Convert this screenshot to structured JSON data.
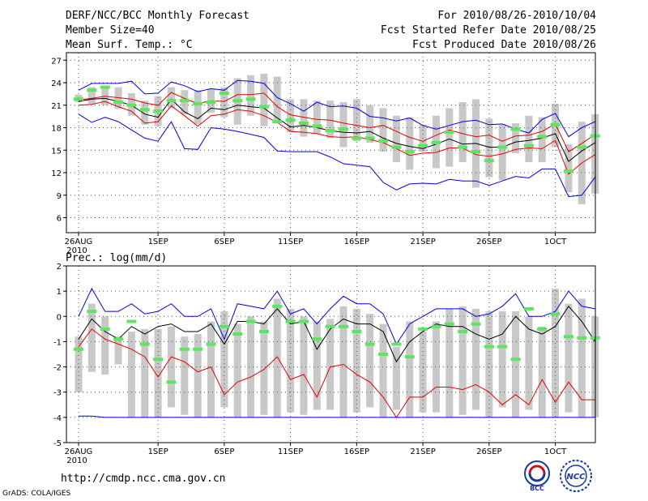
{
  "header": {
    "title": "DERF/NCC/BCC Monthly Forecast",
    "member_size": "Member Size=40",
    "variable": "Mean Surf. Temp.: °C",
    "for_range": "For 2010/08/26-2010/10/04",
    "fcst_started": "Fcst Started Refer Date 2010/08/25",
    "fcst_produced": "Fcst Produced Date 2010/08/26"
  },
  "footer": {
    "url": "http://cmdp.ncc.cma.gov.cn",
    "credit": "GrADS: COLA/IGES"
  },
  "logos": {
    "bcc_label": "BCC",
    "ncc_label": "NCC"
  },
  "colors": {
    "box": "#c8c8c8",
    "median": "#5ce65c",
    "max_min": "#0000e6",
    "mean": "#000000",
    "spread": "#e60000"
  },
  "chart_data": [
    {
      "type": "line",
      "title": "Mean Surf. Temp.: °C",
      "xlabel": "",
      "ylabel": "",
      "ylim": [
        4,
        28
      ],
      "yticks": [
        6,
        9,
        12,
        15,
        18,
        21,
        24,
        27
      ],
      "x_ticks": [
        {
          "day": 0,
          "label": "26AUG",
          "sub": "2010"
        },
        {
          "day": 6,
          "label": "1SEP"
        },
        {
          "day": 11,
          "label": "6SEP"
        },
        {
          "day": 16,
          "label": "11SEP"
        },
        {
          "day": 21,
          "label": "16SEP"
        },
        {
          "day": 26,
          "label": "21SEP"
        },
        {
          "day": 31,
          "label": "26SEP"
        },
        {
          "day": 36,
          "label": "1OCT"
        }
      ],
      "days": 40,
      "box_low": [
        21.4,
        21.2,
        21.0,
        20.5,
        19.6,
        18.4,
        18.2,
        20.6,
        19.8,
        18.5,
        20.0,
        19.4,
        18.4,
        19.6,
        18.2,
        18.6,
        17.4,
        16.8,
        17.2,
        16.6,
        15.4,
        16.2,
        16.0,
        14.8,
        13.4,
        12.4,
        14.8,
        12.6,
        12.8,
        13.4,
        10.0,
        11.4,
        11.0,
        14.6,
        13.4,
        13.4,
        15.4,
        9.4,
        7.8,
        9.2
      ],
      "box_high": [
        22.4,
        23.4,
        23.6,
        23.4,
        22.6,
        21.6,
        22.2,
        23.4,
        23.0,
        23.0,
        23.2,
        23.4,
        24.6,
        25.0,
        25.2,
        24.8,
        21.8,
        21.8,
        21.6,
        21.6,
        21.4,
        21.8,
        21.0,
        20.6,
        19.6,
        19.4,
        18.4,
        19.6,
        20.6,
        21.4,
        21.8,
        19.2,
        18.4,
        18.6,
        19.6,
        19.4,
        21.2,
        15.8,
        18.8,
        19.8
      ],
      "median": [
        21.8,
        23.0,
        23.4,
        21.4,
        21.0,
        20.4,
        20.2,
        21.6,
        21.6,
        21.2,
        21.4,
        22.6,
        21.6,
        21.8,
        20.8,
        18.8,
        19.0,
        18.6,
        18.2,
        17.6,
        17.8,
        16.6,
        16.6,
        16.2,
        15.4,
        14.8,
        15.6,
        16.0,
        17.4,
        15.4,
        14.8,
        13.6,
        15.4,
        17.8,
        15.6,
        16.8,
        18.4,
        12.2,
        15.4,
        16.9
      ],
      "series": [
        {
          "name": "max",
          "values": [
            23.0,
            23.9,
            23.9,
            23.9,
            24.2,
            22.5,
            22.6,
            24.1,
            23.6,
            22.8,
            23.2,
            23.0,
            24.3,
            24.2,
            23.9,
            22.0,
            21.2,
            20.2,
            21.4,
            20.8,
            20.9,
            20.6,
            19.5,
            19.3,
            18.9,
            19.3,
            18.3,
            17.8,
            18.3,
            18.8,
            19.0,
            18.4,
            18.5,
            17.8,
            17.3,
            19.1,
            19.9,
            16.8,
            18.0,
            18.8
          ]
        },
        {
          "name": "p_high",
          "values": [
            21.7,
            21.9,
            22.2,
            22.0,
            21.8,
            21.3,
            21.0,
            22.7,
            21.9,
            21.2,
            21.6,
            21.5,
            22.4,
            22.4,
            22.6,
            20.8,
            19.7,
            19.4,
            19.1,
            19.0,
            18.6,
            18.3,
            18.0,
            18.3,
            17.5,
            16.7,
            16.2,
            17.0,
            17.7,
            17.2,
            16.8,
            17.0,
            16.2,
            16.9,
            17.0,
            17.5,
            18.5,
            14.8,
            15.9,
            17.1
          ]
        },
        {
          "name": "mean",
          "values": [
            21.5,
            21.8,
            21.9,
            21.5,
            21.0,
            19.8,
            19.4,
            21.8,
            20.1,
            19.2,
            20.6,
            20.4,
            21.0,
            20.8,
            20.6,
            19.3,
            18.1,
            18.3,
            18.0,
            17.6,
            17.4,
            17.3,
            17.5,
            16.6,
            15.9,
            15.5,
            15.2,
            15.8,
            16.5,
            15.8,
            15.9,
            15.4,
            15.4,
            16.1,
            16.3,
            16.6,
            17.2,
            13.5,
            14.9,
            16.0
          ]
        },
        {
          "name": "p_low",
          "values": [
            21.0,
            21.1,
            21.5,
            20.8,
            20.2,
            18.6,
            18.8,
            20.9,
            19.6,
            18.2,
            19.6,
            19.8,
            20.4,
            20.2,
            19.6,
            18.7,
            17.5,
            17.4,
            17.2,
            16.8,
            16.7,
            16.8,
            16.4,
            16.0,
            15.2,
            14.3,
            14.6,
            14.7,
            15.3,
            15.3,
            14.4,
            14.2,
            14.5,
            15.1,
            15.3,
            15.2,
            16.3,
            11.8,
            13.3,
            14.4
          ]
        },
        {
          "name": "min",
          "values": [
            19.8,
            18.7,
            19.4,
            18.8,
            17.7,
            16.6,
            16.2,
            18.8,
            15.2,
            15.1,
            18.0,
            17.8,
            17.5,
            17.1,
            16.7,
            14.9,
            14.8,
            14.8,
            14.8,
            14.1,
            13.2,
            13.0,
            12.8,
            10.7,
            9.7,
            10.5,
            10.6,
            10.5,
            11.1,
            10.9,
            10.9,
            10.3,
            10.9,
            11.5,
            11.3,
            12.5,
            12.5,
            8.8,
            9.0,
            11.4
          ]
        }
      ]
    },
    {
      "type": "line",
      "title": "Prec.: log(mm/d)",
      "xlabel": "",
      "ylabel": "",
      "ylim": [
        -5,
        2
      ],
      "yticks": [
        -5,
        -4,
        -3,
        -2,
        -1,
        0,
        1,
        2
      ],
      "x_ticks": [
        {
          "day": 0,
          "label": "26AUG",
          "sub": "2010"
        },
        {
          "day": 6,
          "label": "1SEP"
        },
        {
          "day": 11,
          "label": "6SEP"
        },
        {
          "day": 16,
          "label": "11SEP"
        },
        {
          "day": 21,
          "label": "16SEP"
        },
        {
          "day": 26,
          "label": "21SEP"
        },
        {
          "day": 31,
          "label": "26SEP"
        },
        {
          "day": 36,
          "label": "1OCT"
        }
      ],
      "days": 40,
      "box_low": [
        -3.0,
        -2.2,
        -2.3,
        -1.9,
        -4.0,
        -4.0,
        -4.0,
        -3.6,
        -3.9,
        -4.0,
        -4.0,
        -3.6,
        -4.0,
        -4.0,
        -3.9,
        -4.0,
        -3.8,
        -3.9,
        -3.7,
        -3.7,
        -4.0,
        -3.8,
        -3.6,
        -4.0,
        -3.7,
        -4.0,
        -3.8,
        -3.8,
        -4.0,
        -3.9,
        -3.7,
        -4.0,
        -3.6,
        -4.0,
        -3.7,
        -4.0,
        -4.0,
        -3.8,
        -4.0,
        -4.0
      ],
      "box_high": [
        -0.8,
        0.5,
        0.0,
        -0.8,
        -0.6,
        -0.5,
        -0.5,
        -0.4,
        -0.8,
        -0.7,
        -0.2,
        0.2,
        -0.3,
        0.0,
        -0.2,
        0.7,
        0.3,
        0.0,
        -0.2,
        -0.1,
        0.4,
        0.3,
        0.1,
        -0.3,
        -1.2,
        -0.2,
        -0.6,
        -0.2,
        0.3,
        0.4,
        0.3,
        0.2,
        0.2,
        0.2,
        0.0,
        -0.4,
        1.1,
        0.5,
        0.7,
        0.0
      ],
      "median": [
        -1.3,
        0.2,
        -0.5,
        -0.9,
        -0.2,
        -1.1,
        -1.7,
        -2.6,
        -1.3,
        -1.3,
        -1.1,
        -0.4,
        -0.7,
        -0.2,
        -0.6,
        0.4,
        -0.2,
        -0.2,
        -0.9,
        -0.4,
        -0.4,
        -0.6,
        -1.1,
        -1.5,
        -1.1,
        -1.6,
        -0.5,
        -0.4,
        -0.3,
        -0.6,
        -0.3,
        -1.2,
        -1.2,
        -1.7,
        0.3,
        -0.5,
        0.1,
        -0.8,
        -0.85,
        -0.85
      ],
      "series": [
        {
          "name": "max",
          "values": [
            0.0,
            1.1,
            0.2,
            0.2,
            0.5,
            0.1,
            0.2,
            0.5,
            0.0,
            0.0,
            0.3,
            -0.9,
            0.5,
            0.4,
            0.3,
            1.0,
            0.1,
            0.3,
            -0.3,
            0.3,
            0.8,
            0.5,
            0.5,
            0.1,
            -1.1,
            -0.3,
            0.0,
            0.3,
            0.3,
            0.3,
            0.0,
            0.1,
            0.4,
            0.9,
            0.0,
            0.0,
            0.2,
            1.0,
            0.4,
            0.3
          ]
        },
        {
          "name": "mean",
          "values": [
            -0.9,
            -0.1,
            -0.6,
            -0.9,
            -0.4,
            -0.7,
            -0.4,
            -0.3,
            -0.6,
            -0.6,
            -0.3,
            -1.1,
            -0.2,
            -0.2,
            -0.3,
            0.3,
            -0.3,
            -0.2,
            -1.3,
            -0.5,
            -0.1,
            -0.3,
            -0.3,
            -0.6,
            -1.8,
            -1.0,
            -0.6,
            -0.3,
            -0.4,
            -0.4,
            -0.7,
            -0.9,
            -0.7,
            0.0,
            -0.5,
            -0.7,
            -0.4,
            0.4,
            -0.2,
            -1.0
          ]
        },
        {
          "name": "p_low",
          "values": [
            -1.2,
            -0.5,
            -0.9,
            -1.1,
            -1.3,
            -1.6,
            -2.4,
            -1.6,
            -1.8,
            -2.2,
            -2.0,
            -3.1,
            -2.6,
            -2.4,
            -2.1,
            -1.6,
            -2.5,
            -2.3,
            -3.2,
            -2.0,
            -1.9,
            -2.3,
            -2.6,
            -3.2,
            -4.0,
            -3.2,
            -3.2,
            -2.8,
            -2.8,
            -2.9,
            -2.7,
            -3.0,
            -3.5,
            -3.1,
            -3.5,
            -2.5,
            -3.4,
            -2.6,
            -3.3,
            -3.3
          ]
        },
        {
          "name": "min",
          "values": [
            -3.95,
            -3.95,
            -4.0,
            -4.0,
            -4.0,
            -4.0,
            -4.0,
            -4.0,
            -4.0,
            -4.0,
            -4.0,
            -4.0,
            -4.0,
            -4.0,
            -4.0,
            -4.0,
            -4.0,
            -4.0,
            -4.0,
            -4.0,
            -4.0,
            -4.0,
            -4.0,
            -4.0,
            -4.0,
            -4.0,
            -4.0,
            -4.0,
            -4.0,
            -4.0,
            -4.0,
            -4.0,
            -4.0,
            -4.0,
            -4.0,
            -4.0,
            -4.0,
            -4.0,
            -4.0,
            -4.0
          ]
        }
      ]
    }
  ]
}
